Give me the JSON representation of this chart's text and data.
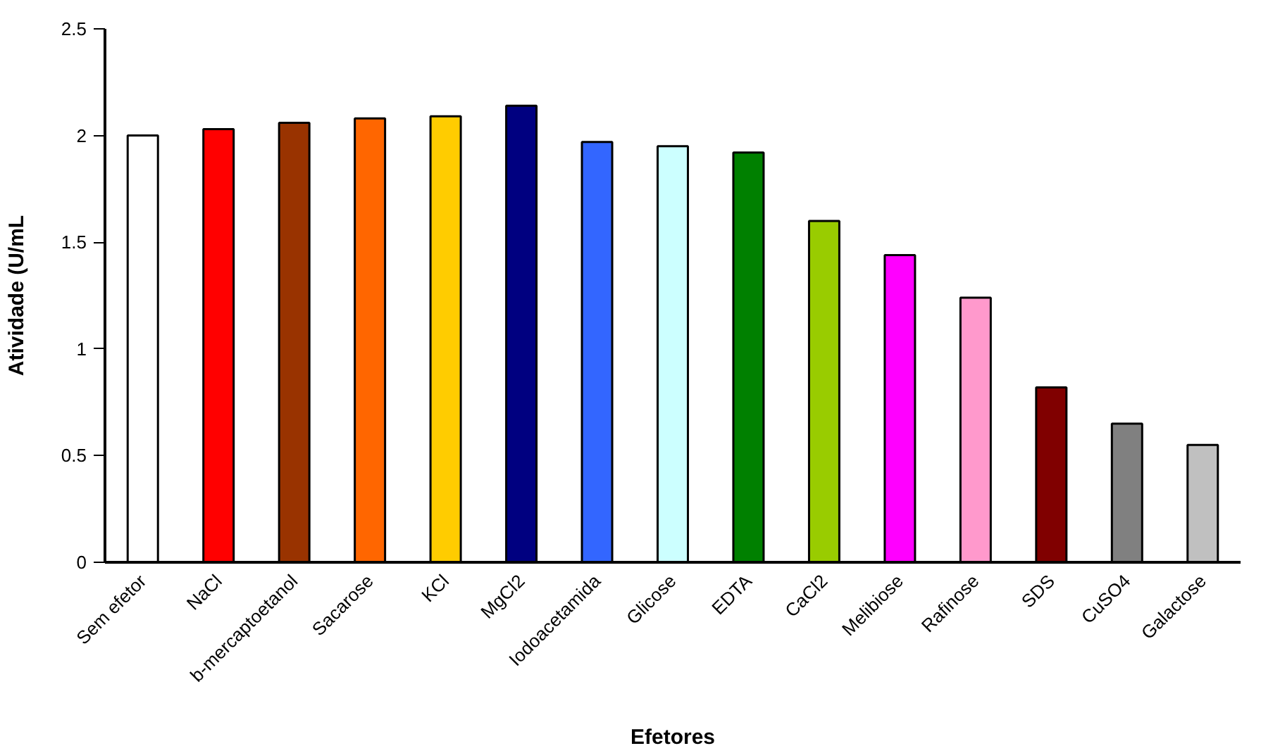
{
  "chart_data": {
    "type": "bar",
    "xlabel": "Efetores",
    "ylabel": "Atividade (U/mL",
    "categories": [
      "Sem efetor",
      "NaCl",
      "b-mercaptoetanol",
      "Sacarose",
      "KCl",
      "MgCl2",
      "Iodoacetamida",
      "Glicose",
      "EDTA",
      "CaCl2",
      "Melibiose",
      "Rafinose",
      "SDS",
      "CuSO4",
      "Galactose"
    ],
    "values": [
      2.0,
      2.03,
      2.06,
      2.08,
      2.09,
      2.14,
      1.97,
      1.95,
      1.92,
      1.6,
      1.44,
      1.24,
      0.82,
      0.65,
      0.55
    ],
    "colors": [
      "#ffffff",
      "#ff0000",
      "#993300",
      "#ff6600",
      "#ffcc00",
      "#000080",
      "#3366ff",
      "#ccffff",
      "#008000",
      "#99cc00",
      "#ff00ff",
      "#ff99cc",
      "#800000",
      "#808080",
      "#c0c0c0"
    ],
    "ylim": [
      0,
      2.5
    ],
    "yticks": [
      0,
      0.5,
      1,
      1.5,
      2,
      2.5
    ],
    "grid": false
  }
}
